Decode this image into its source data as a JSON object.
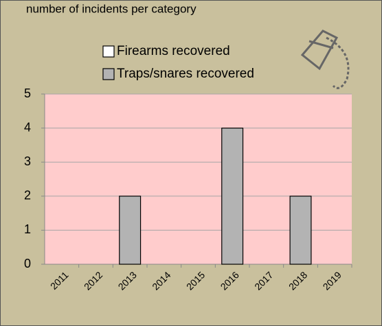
{
  "chart_data": {
    "type": "bar",
    "title": "number of incidents per category",
    "categories": [
      "2011",
      "2012",
      "2013",
      "2014",
      "2015",
      "2016",
      "2017",
      "2018",
      "2019"
    ],
    "series": [
      {
        "name": "Firearms recovered",
        "color": "#ffffff",
        "values": [
          0,
          0,
          0,
          0,
          0,
          0,
          0,
          0,
          0
        ]
      },
      {
        "name": "Traps/snares recovered",
        "color": "#b3b3b3",
        "values": [
          0,
          0,
          2,
          0,
          0,
          4,
          0,
          2,
          0
        ]
      }
    ],
    "ylim": [
      0,
      5
    ],
    "yticks": [
      0,
      1,
      2,
      3,
      4,
      5
    ],
    "grid": true
  }
}
